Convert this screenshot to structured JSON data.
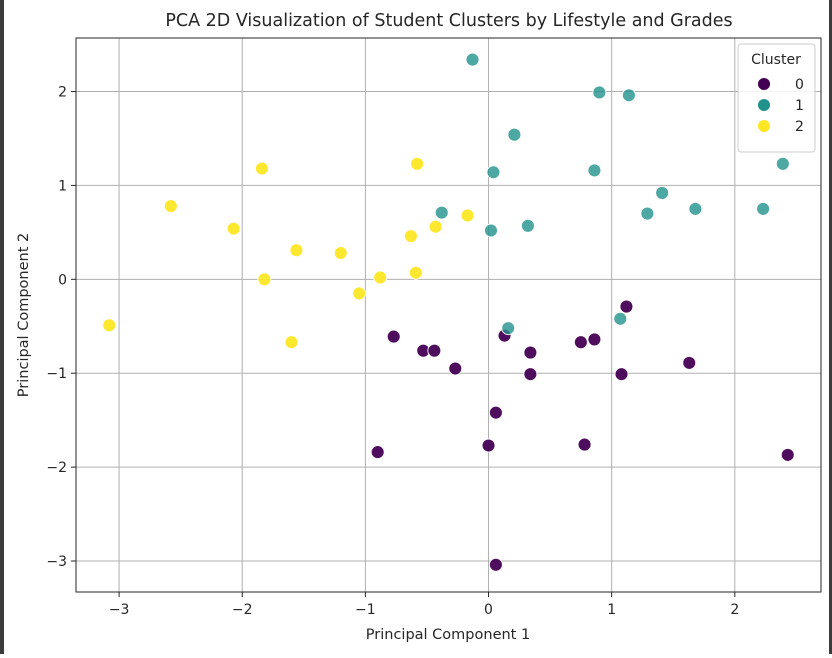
{
  "chart_data": {
    "type": "scatter",
    "title": "PCA 2D Visualization of Student Clusters by Lifestyle and Grades",
    "xlabel": "Principal Component 1",
    "ylabel": "Principal Component 2",
    "xlim": [
      -3.35,
      2.7
    ],
    "ylim": [
      -3.33,
      2.57
    ],
    "xticks": [
      -3,
      -2,
      -1,
      0,
      1,
      2
    ],
    "yticks": [
      -3,
      -2,
      -1,
      0,
      1,
      2
    ],
    "xtick_labels": [
      "−3",
      "−2",
      "−1",
      "0",
      "1",
      "2"
    ],
    "ytick_labels": [
      "−3",
      "−2",
      "−1",
      "0",
      "1",
      "2"
    ],
    "grid": true,
    "legend": {
      "title": "Cluster",
      "placement": "upper right"
    },
    "series": [
      {
        "name": "0",
        "color": "#440154",
        "points": [
          [
            -0.77,
            -0.61
          ],
          [
            -0.53,
            -0.76
          ],
          [
            -0.44,
            -0.76
          ],
          [
            -0.27,
            -0.95
          ],
          [
            -0.9,
            -1.84
          ],
          [
            0.06,
            -1.42
          ],
          [
            0.0,
            -1.77
          ],
          [
            0.13,
            -0.6
          ],
          [
            0.34,
            -0.78
          ],
          [
            0.34,
            -1.01
          ],
          [
            0.06,
            -3.04
          ],
          [
            0.75,
            -0.67
          ],
          [
            0.86,
            -0.64
          ],
          [
            0.78,
            -1.76
          ],
          [
            1.08,
            -1.01
          ],
          [
            1.12,
            -0.29
          ],
          [
            1.63,
            -0.89
          ],
          [
            2.43,
            -1.87
          ]
        ]
      },
      {
        "name": "1",
        "color": "#21918c",
        "points": [
          [
            -0.13,
            2.34
          ],
          [
            0.9,
            1.99
          ],
          [
            1.14,
            1.96
          ],
          [
            0.21,
            1.54
          ],
          [
            0.04,
            1.14
          ],
          [
            0.86,
            1.16
          ],
          [
            -0.38,
            0.71
          ],
          [
            0.02,
            0.52
          ],
          [
            0.32,
            0.57
          ],
          [
            1.41,
            0.92
          ],
          [
            1.29,
            0.7
          ],
          [
            1.68,
            0.75
          ],
          [
            2.23,
            0.75
          ],
          [
            2.39,
            1.23
          ],
          [
            0.16,
            -0.52
          ],
          [
            1.07,
            -0.42
          ]
        ]
      },
      {
        "name": "2",
        "color": "#fde725",
        "points": [
          [
            -2.58,
            0.78
          ],
          [
            -2.07,
            0.54
          ],
          [
            -1.84,
            1.18
          ],
          [
            -1.82,
            0.0
          ],
          [
            -1.56,
            0.31
          ],
          [
            -1.6,
            -0.67
          ],
          [
            -1.2,
            0.28
          ],
          [
            -1.05,
            -0.15
          ],
          [
            -0.88,
            0.02
          ],
          [
            -0.58,
            1.23
          ],
          [
            -0.63,
            0.46
          ],
          [
            -0.43,
            0.56
          ],
          [
            -0.59,
            0.07
          ],
          [
            -0.17,
            0.68
          ],
          [
            -3.08,
            -0.49
          ]
        ]
      }
    ]
  }
}
